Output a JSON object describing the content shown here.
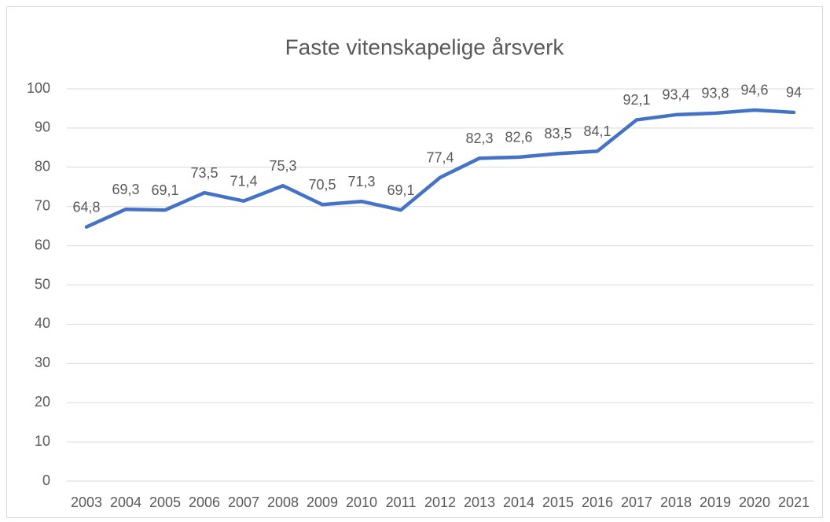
{
  "chart_data": {
    "type": "line",
    "title": "Faste vitenskapelige årsverk",
    "categories": [
      "2003",
      "2004",
      "2005",
      "2006",
      "2007",
      "2008",
      "2009",
      "2010",
      "2011",
      "2012",
      "2013",
      "2014",
      "2015",
      "2016",
      "2017",
      "2018",
      "2019",
      "2020",
      "2021"
    ],
    "values": [
      64.8,
      69.3,
      69.1,
      73.5,
      71.4,
      75.3,
      70.5,
      71.3,
      69.1,
      77.4,
      82.3,
      82.6,
      83.5,
      84.1,
      92.1,
      93.4,
      93.8,
      94.6,
      94
    ],
    "value_labels": [
      "64,8",
      "69,3",
      "69,1",
      "73,5",
      "71,4",
      "75,3",
      "70,5",
      "71,3",
      "69,1",
      "77,4",
      "82,3",
      "82,6",
      "83,5",
      "84,1",
      "92,1",
      "93,4",
      "93,8",
      "94,6",
      "94"
    ],
    "color": "#4472c4",
    "ylim": [
      0,
      100
    ],
    "yticks": [
      0,
      10,
      20,
      30,
      40,
      50,
      60,
      70,
      80,
      90,
      100
    ],
    "grid": true
  }
}
